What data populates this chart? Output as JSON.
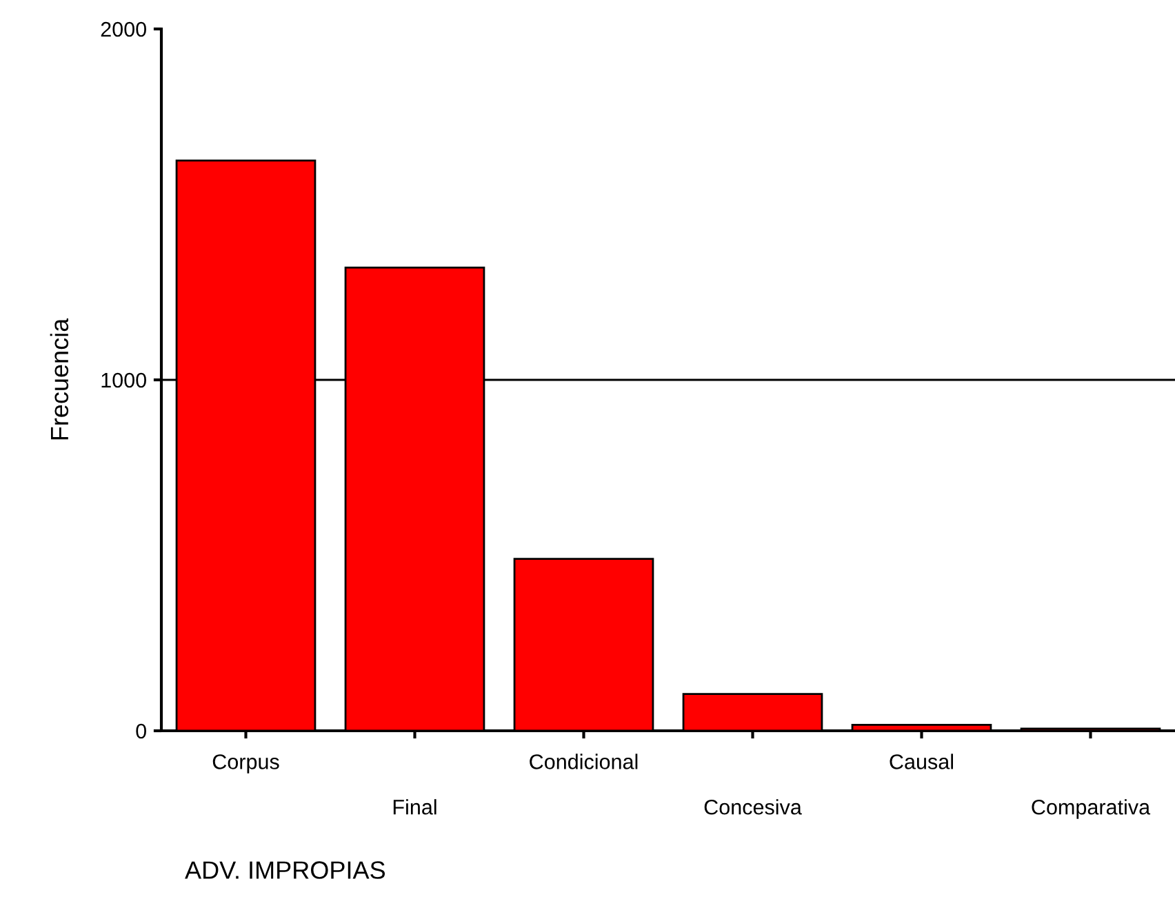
{
  "chart_data": {
    "type": "bar",
    "xlabel": "ADV. IMPROPIAS",
    "ylabel": "Frecuencia",
    "categories": [
      "Corpus",
      "Final",
      "Condicional",
      "Concesiva",
      "Causal",
      "Comparativa"
    ],
    "values": [
      1625,
      1320,
      490,
      105,
      17,
      6
    ],
    "color": "#ff0000",
    "ylim": [
      0,
      2000
    ],
    "yticks": [
      0,
      1000,
      2000
    ],
    "grid": "y"
  }
}
